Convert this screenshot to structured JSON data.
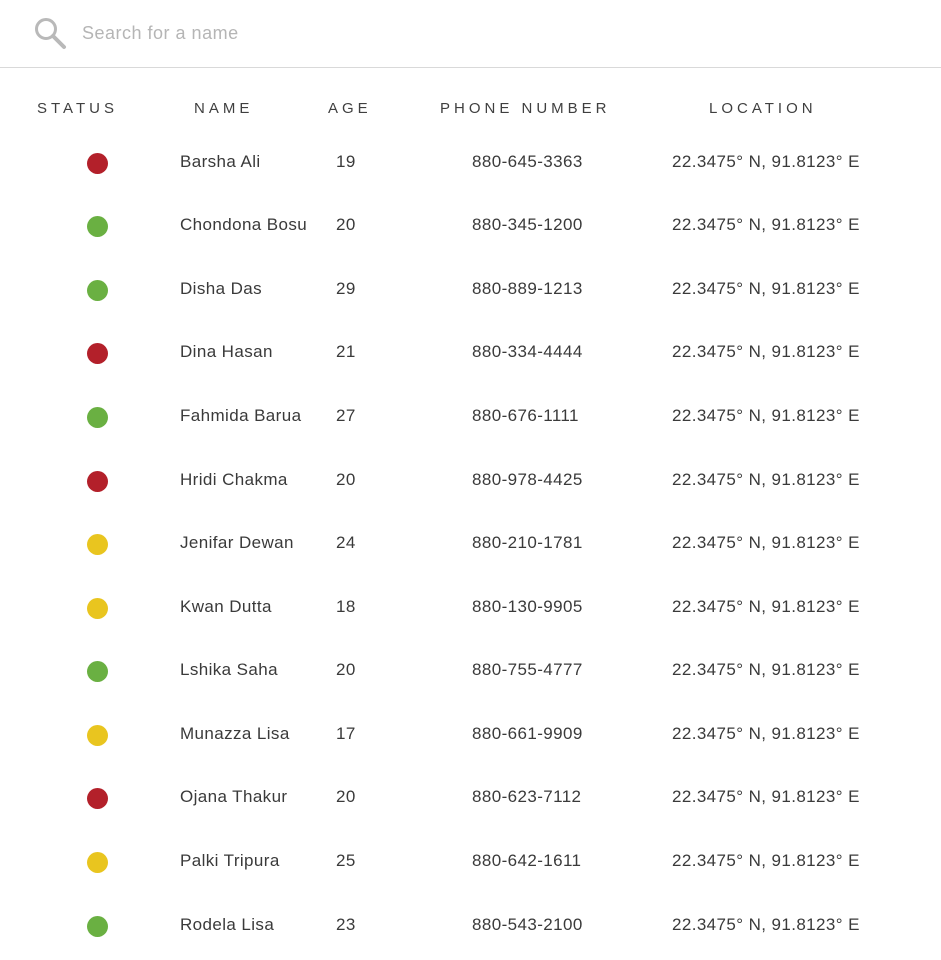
{
  "search": {
    "placeholder": "Search for a name",
    "icon": "search-icon"
  },
  "columns": {
    "status": "STATUS",
    "name": "NAME",
    "age": "AGE",
    "phone": "PHONE NUMBER",
    "location": "LOCATION"
  },
  "status_colors": {
    "red": "#b3202a",
    "green": "#6ab042",
    "yellow": "#e9c51f"
  },
  "rows": [
    {
      "status": "red",
      "name": "Barsha Ali",
      "age": "19",
      "phone": "880-645-3363",
      "location": "22.3475° N, 91.8123° E"
    },
    {
      "status": "green",
      "name": "Chondona Bosu",
      "age": "20",
      "phone": "880-345-1200",
      "location": "22.3475° N, 91.8123° E"
    },
    {
      "status": "green",
      "name": "Disha Das",
      "age": "29",
      "phone": "880-889-1213",
      "location": "22.3475° N, 91.8123° E"
    },
    {
      "status": "red",
      "name": "Dina Hasan",
      "age": "21",
      "phone": "880-334-4444",
      "location": "22.3475° N, 91.8123° E"
    },
    {
      "status": "green",
      "name": "Fahmida Barua",
      "age": "27",
      "phone": "880-676-1111",
      "location": "22.3475° N, 91.8123° E"
    },
    {
      "status": "red",
      "name": "Hridi Chakma",
      "age": "20",
      "phone": "880-978-4425",
      "location": "22.3475° N, 91.8123° E"
    },
    {
      "status": "yellow",
      "name": "Jenifar Dewan",
      "age": "24",
      "phone": "880-210-1781",
      "location": "22.3475° N, 91.8123° E"
    },
    {
      "status": "yellow",
      "name": "Kwan Dutta",
      "age": "18",
      "phone": "880-130-9905",
      "location": "22.3475° N, 91.8123° E"
    },
    {
      "status": "green",
      "name": "Lshika Saha",
      "age": "20",
      "phone": "880-755-4777",
      "location": "22.3475° N, 91.8123° E"
    },
    {
      "status": "yellow",
      "name": "Munazza Lisa",
      "age": "17",
      "phone": "880-661-9909",
      "location": "22.3475° N, 91.8123° E"
    },
    {
      "status": "red",
      "name": "Ojana Thakur",
      "age": "20",
      "phone": "880-623-7112",
      "location": "22.3475° N, 91.8123° E"
    },
    {
      "status": "yellow",
      "name": "Palki Tripura",
      "age": "25",
      "phone": "880-642-1611",
      "location": "22.3475° N, 91.8123° E"
    },
    {
      "status": "green",
      "name": "Rodela Lisa",
      "age": "23",
      "phone": "880-543-2100",
      "location": "22.3475° N, 91.8123° E"
    }
  ]
}
